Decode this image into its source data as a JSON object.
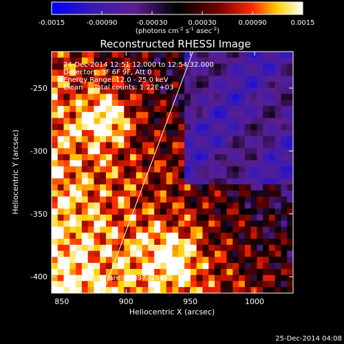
{
  "chart_data": {
    "type": "heatmap",
    "title": "Reconstructed RHESSI Image",
    "xlabel": "Heliocentric X (arcsec)",
    "ylabel": "Heliocentric Y (arcsec)",
    "xlim": [
      842,
      1030
    ],
    "ylim": [
      -413,
      -221
    ],
    "xticks": [
      850,
      900,
      950,
      1000
    ],
    "yticks": [
      -250,
      -300,
      -350,
      -400
    ],
    "colorbar": {
      "vmin": -0.0015,
      "vmax": 0.0015,
      "ticks": [
        "-0.0015",
        "-0.00090",
        "-0.00030",
        "0.00030",
        "0.00090",
        "0.0015"
      ],
      "units_base": "(photons cm",
      "units_sup1": "-2",
      "units_mid": " s",
      "units_sup2": "-1",
      "units_end": " asec",
      "units_sup3": "-2",
      "units_close": ")",
      "colors": [
        "#0000ff",
        "#5a1f8f",
        "#000000",
        "#6e0000",
        "#ff2a00",
        "#ffd200",
        "#ffffff"
      ]
    },
    "annotations": [
      "24-Dec-2014 12:51:12.000 to 12:54:32.000",
      "Detectors: 3F 6F 9F, Att 0",
      "Energy Range: 12.0 - 25.0 keV",
      "Clean     Total counts: 1.22E+03"
    ],
    "position_of_flare": "Position of Flare = [897,-284]",
    "limb_line": {
      "x": [
        882,
        952
      ],
      "y": [
        -413,
        -221
      ]
    },
    "grid_size": 40
  },
  "footer_date": "25-Dec-2014 04:08"
}
